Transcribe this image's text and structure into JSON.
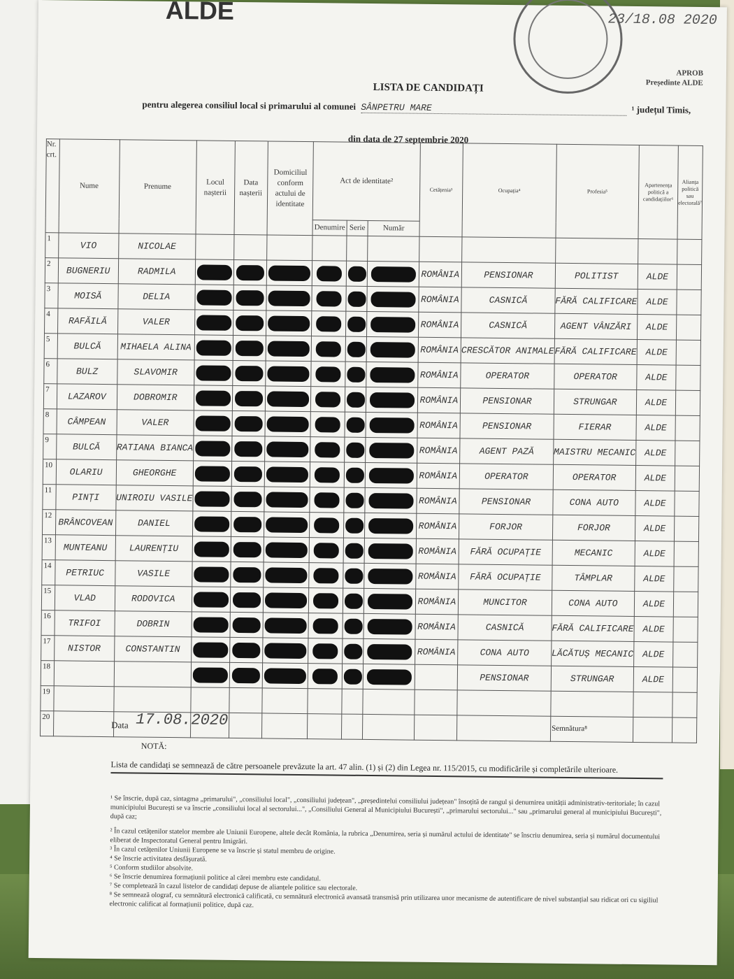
{
  "header": {
    "logo": "ALDE",
    "registration": "23/18.08 2020",
    "approve": "APROB",
    "approve_role": "Președinte ALDE",
    "title": "LISTA DE CANDIDAȚI",
    "subtitle_prefix": "pentru alegerea consiliul local si primarului al comunei",
    "commune": "SÂNPETRU MARE",
    "subtitle_suffix": "¹ județul Timis,",
    "date_line": "din data de 27 septembrie 2020"
  },
  "table": {
    "headers": {
      "nr": "Nr. crt.",
      "nume": "Nume",
      "prenume": "Prenume",
      "locul": "Locul nașterii",
      "data": "Data nașterii",
      "domiciliu": "Domiciliul conform actului de identitate",
      "act": "Act de identitate²",
      "denumire": "Denumire",
      "serie": "Serie",
      "numar": "Număr",
      "cetatenia": "Cetățenia³",
      "ocupatia": "Ocupația⁴",
      "profesia": "Profesia⁵",
      "apartenenta": "Apartenența politică a candidațiilor⁶",
      "alianta": "Alianța politică sau electorală⁷"
    },
    "rows": [
      {
        "nr": "1",
        "nume": "Vio",
        "prenume": "Nicolae",
        "cetatenia": "",
        "ocupatia": "",
        "profesia": "",
        "partid": ""
      },
      {
        "nr": "2",
        "nume": "Bugneriu",
        "prenume": "Radmila",
        "cetatenia": "România",
        "ocupatia": "Pensionar",
        "profesia": "Politist",
        "partid": "ALDE"
      },
      {
        "nr": "3",
        "nume": "Moisă",
        "prenume": "Delia",
        "cetatenia": "România",
        "ocupatia": "Casnică",
        "profesia": "Fără calificare",
        "partid": "ALDE"
      },
      {
        "nr": "4",
        "nume": "Rafăilă",
        "prenume": "Valer",
        "cetatenia": "România",
        "ocupatia": "Casnică",
        "profesia": "Agent vânzări",
        "partid": "ALDE"
      },
      {
        "nr": "5",
        "nume": "Bulcă",
        "prenume": "Mihaela Alina",
        "cetatenia": "România",
        "ocupatia": "Crescător animale",
        "profesia": "Fără calificare",
        "partid": "ALDE"
      },
      {
        "nr": "6",
        "nume": "Bulz",
        "prenume": "Slavomir",
        "cetatenia": "România",
        "ocupatia": "Operator",
        "profesia": "Operator",
        "partid": "ALDE"
      },
      {
        "nr": "7",
        "nume": "Lazarov",
        "prenume": "Dobromir",
        "cetatenia": "România",
        "ocupatia": "Pensionar",
        "profesia": "Strungar",
        "partid": "ALDE"
      },
      {
        "nr": "8",
        "nume": "Câmpean",
        "prenume": "Valer",
        "cetatenia": "România",
        "ocupatia": "Pensionar",
        "profesia": "Fierar",
        "partid": "ALDE"
      },
      {
        "nr": "9",
        "nume": "Bulcă",
        "prenume": "Ratiana Bianca",
        "cetatenia": "România",
        "ocupatia": "Agent pază",
        "profesia": "Maistru mecanic",
        "partid": "ALDE"
      },
      {
        "nr": "10",
        "nume": "Olariu",
        "prenume": "Gheorghe",
        "cetatenia": "România",
        "ocupatia": "Operator",
        "profesia": "Operator",
        "partid": "ALDE"
      },
      {
        "nr": "11",
        "nume": "Pinți",
        "prenume": "Uniroiu Vasile",
        "cetatenia": "România",
        "ocupatia": "Pensionar",
        "profesia": "Cona auto",
        "partid": "ALDE"
      },
      {
        "nr": "12",
        "nume": "Brâncovean",
        "prenume": "Daniel",
        "cetatenia": "România",
        "ocupatia": "Forjor",
        "profesia": "Forjor",
        "partid": "ALDE"
      },
      {
        "nr": "13",
        "nume": "Munteanu",
        "prenume": "Laurențiu",
        "cetatenia": "România",
        "ocupatia": "Fără ocupație",
        "profesia": "Mecanic",
        "partid": "ALDE"
      },
      {
        "nr": "14",
        "nume": "Petriuc",
        "prenume": "Vasile",
        "cetatenia": "România",
        "ocupatia": "Fără ocupație",
        "profesia": "Tâmplar",
        "partid": "ALDE"
      },
      {
        "nr": "15",
        "nume": "Vlad",
        "prenume": "Rodovica",
        "cetatenia": "România",
        "ocupatia": "Muncitor",
        "profesia": "Cona auto",
        "partid": "ALDE"
      },
      {
        "nr": "16",
        "nume": "Trifoi",
        "prenume": "Dobrin",
        "cetatenia": "România",
        "ocupatia": "Casnică",
        "profesia": "Fără calificare",
        "partid": "ALDE"
      },
      {
        "nr": "17",
        "nume": "Nistor",
        "prenume": "Constantin",
        "cetatenia": "România",
        "ocupatia": "Cona auto",
        "profesia": "Lăcătuș mecanic",
        "partid": "ALDE"
      },
      {
        "nr": "18",
        "nume": "",
        "prenume": "",
        "cetatenia": "",
        "ocupatia": "Pensionar",
        "profesia": "Strungar",
        "partid": "ALDE"
      },
      {
        "nr": "19",
        "nume": "",
        "prenume": "",
        "cetatenia": "",
        "ocupatia": "",
        "profesia": "",
        "partid": ""
      },
      {
        "nr": "20",
        "nume": "",
        "prenume": "",
        "cetatenia": "",
        "ocupatia": "",
        "profesia": "",
        "partid": ""
      }
    ],
    "redacted_rows": 17
  },
  "footer": {
    "data_label": "Data",
    "data_value": "17.08.2020",
    "signature_label": "Semnătura⁸",
    "nota": "NOTĂ:",
    "note_text": "Lista de candidați se semnează de către persoanele prevăzute la art. 47 alin. (1) și (2) din Legea nr. 115/2015, cu modificările și completările ulterioare.",
    "footnotes": [
      "¹ Se înscrie, după caz, sintagma „primarului\", „consiliului local\", „consiliului județean\", „președintelui consiliului județean\" însoțită de rangul și denumirea unității administrativ-teritoriale; în cazul municipiului București se va înscrie „consiliului local al sectorului...\", „Consiliului General al Municipiului București\", „primarului sectorului...\" sau „primarului general al municipiului București\", după caz;",
      "² În cazul cetățenilor statelor membre ale Uniunii Europene, altele decât România, la rubrica „Denumirea, seria și numărul actului de identitate\" se înscriu denumirea, seria și numărul documentului eliberat de Inspectoratul General pentru Imigrări.",
      "³ În cazul cetățenilor Uniunii Europene se va înscrie și statul membru de origine.",
      "⁴ Se înscrie activitatea desfășurată.",
      "⁵ Conform studiilor absolvite.",
      "⁶ Se înscrie denumirea formațiunii politice al cărei membru este candidatul.",
      "⁷ Se completează în cazul listelor de candidați depuse de alianțele politice sau electorale.",
      "⁸ Se semnează olograf, cu semnătură electronică calificată, cu semnătură electronică avansată transmisă prin utilizarea unor mecanisme de autentificare de nivel substanțial sau ridicat ori cu sigiliul electronic calificat al formațiunii politice, după caz."
    ]
  }
}
